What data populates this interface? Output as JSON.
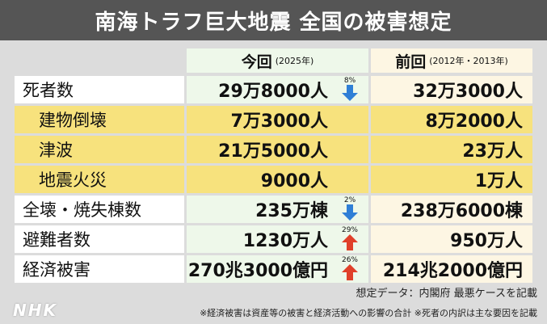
{
  "title": "南海トラフ巨大地震 全国の被害想定",
  "header": {
    "now_label": "今回",
    "now_sub": "(2025年)",
    "prev_label": "前回",
    "prev_sub": "(2012年・2013年)"
  },
  "rows": [
    {
      "label": "死者数",
      "now": "29万8000人",
      "prev": "32万3000人",
      "change": "8%",
      "direction": "down"
    },
    {
      "label": "建物倒壊",
      "now": "7万3000人",
      "prev": "8万2000人"
    },
    {
      "label": "津波",
      "now": "21万5000人",
      "prev": "23万人"
    },
    {
      "label": "地震火災",
      "now": "9000人",
      "prev": "1万人"
    },
    {
      "label": "全壊・焼失棟数",
      "now": "235万棟",
      "prev": "238万6000棟",
      "change": "2%",
      "direction": "down"
    },
    {
      "label": "避難者数",
      "now": "1230万人",
      "prev": "950万人",
      "change": "29%",
      "direction": "up"
    },
    {
      "label": "経済被害",
      "now": "270兆3000億円",
      "prev": "214兆2000億円",
      "change": "26%",
      "direction": "up"
    }
  ],
  "footer": {
    "source": "想定データ：内閣府 最悪ケースを記載",
    "note": "※経済被害は資産等の被害と経済活動への影響の合計 ※死者の内訳は主な要因を記載"
  },
  "logo": "NHK",
  "colors": {
    "down_arrow": "#2f7fd6",
    "up_arrow": "#e0402a",
    "highlight": "#f7e27d"
  }
}
